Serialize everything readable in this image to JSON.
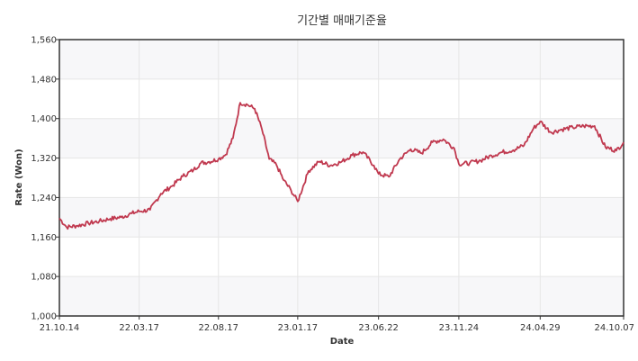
{
  "chart_data": {
    "type": "line",
    "title": "기간별 매매기준율",
    "xlabel": "Date",
    "ylabel": "Rate (Won)",
    "ylim": [
      1000,
      1560
    ],
    "yticks": [
      1000,
      1080,
      1160,
      1240,
      1320,
      1400,
      1480,
      1560
    ],
    "ytick_labels": [
      "1,000",
      "1,080",
      "1,160",
      "1,240",
      "1,320",
      "1,400",
      "1,480",
      "1,560"
    ],
    "xlim": [
      "2021-10-14",
      "2024-10-07"
    ],
    "xtick_labels": [
      "21.10.14",
      "22.03.17",
      "22.08.17",
      "23.01.17",
      "23.06.22",
      "23.11.24",
      "24.04.29",
      "24.10.07"
    ],
    "xtick_dates": [
      "2021-10-14",
      "2022-03-17",
      "2022-08-17",
      "2023-01-17",
      "2023-06-22",
      "2023-11-24",
      "2024-04-29",
      "2024-10-07"
    ],
    "grid": true,
    "line_color": "#c0394f",
    "series": [
      {
        "x": [
          "2021-10-14",
          "2021-10-28",
          "2021-11-18",
          "2021-12-09",
          "2021-12-30",
          "2022-01-20",
          "2022-02-10",
          "2022-03-03",
          "2022-03-17",
          "2022-04-07",
          "2022-04-28",
          "2022-05-19",
          "2022-06-09",
          "2022-06-30",
          "2022-07-14",
          "2022-07-28",
          "2022-08-17",
          "2022-08-31",
          "2022-09-14",
          "2022-09-28",
          "2022-10-12",
          "2022-10-26",
          "2022-11-09",
          "2022-11-23",
          "2022-12-07",
          "2022-12-21",
          "2023-01-04",
          "2023-01-17",
          "2023-02-07",
          "2023-02-28",
          "2023-03-21",
          "2023-04-11",
          "2023-05-02",
          "2023-05-23",
          "2023-06-13",
          "2023-06-22",
          "2023-07-12",
          "2023-08-02",
          "2023-08-23",
          "2023-09-13",
          "2023-10-04",
          "2023-10-25",
          "2023-11-15",
          "2023-11-24",
          "2023-12-15",
          "2024-01-05",
          "2024-01-26",
          "2024-02-16",
          "2024-03-08",
          "2024-03-29",
          "2024-04-16",
          "2024-04-29",
          "2024-05-20",
          "2024-06-10",
          "2024-07-01",
          "2024-07-22",
          "2024-08-12",
          "2024-09-02",
          "2024-09-23",
          "2024-10-07"
        ],
        "values": [
          1198,
          1180,
          1183,
          1188,
          1192,
          1197,
          1200,
          1208,
          1212,
          1215,
          1248,
          1263,
          1283,
          1296,
          1310,
          1312,
          1318,
          1327,
          1360,
          1432,
          1428,
          1420,
          1378,
          1318,
          1306,
          1275,
          1255,
          1232,
          1294,
          1313,
          1305,
          1312,
          1326,
          1332,
          1305,
          1288,
          1282,
          1318,
          1338,
          1330,
          1352,
          1358,
          1340,
          1308,
          1310,
          1315,
          1325,
          1332,
          1336,
          1346,
          1380,
          1394,
          1372,
          1378,
          1382,
          1385,
          1385,
          1342,
          1335,
          1352
        ]
      }
    ]
  }
}
